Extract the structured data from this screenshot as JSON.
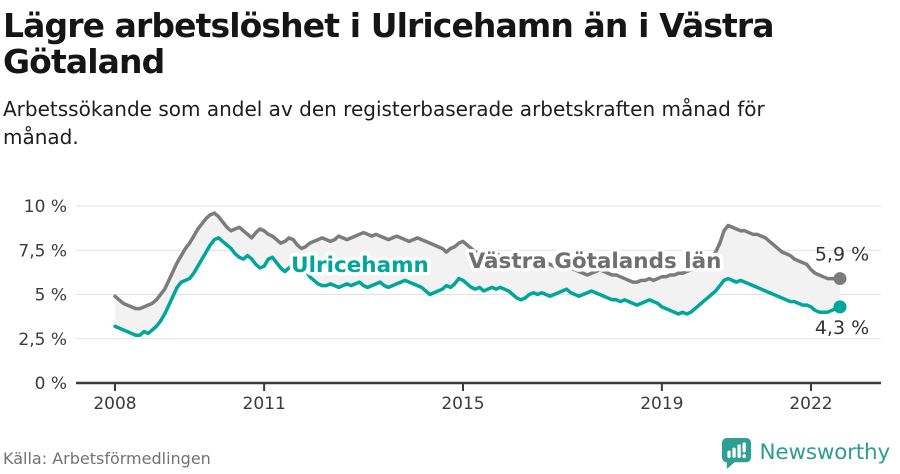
{
  "header": {
    "title": "Lägre arbetslöshet i Ulricehamn än i Västra Götaland",
    "title_lines": [
      "Lägre arbetslöshet i Ulricehamn än i Västra",
      "Götaland"
    ],
    "subtitle": "Arbetssökande som andel av den registerbaserade arbetskraften månad för månad.",
    "subtitle_lines": [
      "Arbetssökande som andel av den registerbaserade arbetskraften månad för",
      "månad."
    ]
  },
  "chart_data": {
    "type": "line",
    "title": "Lägre arbetslöshet i Ulricehamn än i Västra Götaland",
    "x_unit": "month",
    "x_start_year": 2008,
    "x_end_label_period": "mid-2022",
    "ylim": [
      0,
      10
    ],
    "grid": true,
    "y_ticks": [
      {
        "value": 0,
        "label": "0 %"
      },
      {
        "value": 2.5,
        "label": "2,5 %"
      },
      {
        "value": 5,
        "label": "5 %"
      },
      {
        "value": 7.5,
        "label": "7,5 %"
      },
      {
        "value": 10,
        "label": "10 %"
      }
    ],
    "x_ticks": [
      {
        "year": 2008,
        "label": "2008"
      },
      {
        "year": 2011,
        "label": "2011"
      },
      {
        "year": 2015,
        "label": "2015"
      },
      {
        "year": 2019,
        "label": "2019"
      },
      {
        "year": 2022,
        "label": "2022"
      }
    ],
    "area_fill_color": "#f2f2f2",
    "series": [
      {
        "name": "Västra Götalands län",
        "color": "#7c7c7c",
        "label_color": "#6f6f6f",
        "end_label": "5,9 %",
        "end_value": 5.9,
        "values": [
          4.9,
          4.7,
          4.5,
          4.4,
          4.3,
          4.2,
          4.2,
          4.3,
          4.4,
          4.5,
          4.7,
          5.0,
          5.3,
          5.8,
          6.3,
          6.8,
          7.2,
          7.6,
          7.9,
          8.3,
          8.7,
          9.0,
          9.3,
          9.5,
          9.6,
          9.4,
          9.1,
          8.8,
          8.6,
          8.7,
          8.8,
          8.6,
          8.4,
          8.2,
          8.5,
          8.7,
          8.6,
          8.4,
          8.3,
          8.1,
          7.9,
          8.0,
          8.2,
          8.1,
          7.8,
          7.6,
          7.7,
          7.9,
          8.0,
          8.1,
          8.2,
          8.1,
          8.0,
          8.1,
          8.3,
          8.2,
          8.1,
          8.2,
          8.3,
          8.4,
          8.5,
          8.4,
          8.3,
          8.4,
          8.3,
          8.2,
          8.1,
          8.2,
          8.3,
          8.2,
          8.1,
          8.0,
          8.1,
          8.2,
          8.1,
          8.0,
          7.9,
          7.8,
          7.7,
          7.6,
          7.4,
          7.6,
          7.7,
          7.9,
          8.0,
          7.8,
          7.6,
          7.4,
          7.3,
          7.2,
          7.1,
          7.2,
          7.3,
          7.2,
          7.1,
          7.0,
          7.0,
          7.1,
          7.0,
          6.9,
          6.8,
          6.7,
          6.6,
          6.7,
          6.8,
          6.7,
          6.6,
          6.5,
          6.5,
          6.6,
          6.5,
          6.4,
          6.3,
          6.2,
          6.1,
          6.2,
          6.3,
          6.4,
          6.3,
          6.2,
          6.1,
          6.1,
          6.0,
          5.9,
          5.8,
          5.7,
          5.7,
          5.8,
          5.8,
          5.9,
          5.8,
          5.9,
          6.0,
          6.0,
          6.1,
          6.1,
          6.2,
          6.2,
          6.3,
          6.4,
          6.5,
          6.6,
          6.8,
          7.0,
          7.1,
          7.4,
          7.9,
          8.6,
          8.9,
          8.8,
          8.7,
          8.6,
          8.6,
          8.5,
          8.4,
          8.4,
          8.3,
          8.2,
          8.0,
          7.8,
          7.6,
          7.4,
          7.3,
          7.2,
          7.0,
          6.9,
          6.8,
          6.7,
          6.4,
          6.2,
          6.1,
          6.0,
          5.9,
          5.9,
          5.9,
          5.9
        ]
      },
      {
        "name": "Ulricehamn",
        "color": "#00a69a",
        "label_color": "#00a69a",
        "end_label": "4,3 %",
        "end_value": 4.3,
        "values": [
          3.2,
          3.1,
          3.0,
          2.9,
          2.8,
          2.7,
          2.7,
          2.9,
          2.8,
          3.0,
          3.2,
          3.5,
          3.9,
          4.4,
          4.9,
          5.4,
          5.7,
          5.8,
          5.9,
          6.2,
          6.6,
          7.0,
          7.4,
          7.8,
          8.1,
          8.2,
          8.0,
          7.8,
          7.6,
          7.3,
          7.1,
          7.0,
          7.2,
          7.0,
          6.7,
          6.5,
          6.6,
          7.0,
          7.1,
          6.8,
          6.5,
          6.3,
          6.5,
          6.7,
          7.0,
          6.9,
          6.4,
          6.0,
          5.8,
          5.6,
          5.5,
          5.5,
          5.6,
          5.5,
          5.4,
          5.5,
          5.6,
          5.5,
          5.6,
          5.7,
          5.5,
          5.4,
          5.5,
          5.6,
          5.7,
          5.5,
          5.4,
          5.5,
          5.6,
          5.7,
          5.8,
          5.7,
          5.6,
          5.5,
          5.4,
          5.2,
          5.0,
          5.1,
          5.2,
          5.3,
          5.5,
          5.4,
          5.6,
          5.9,
          5.8,
          5.6,
          5.4,
          5.3,
          5.4,
          5.2,
          5.3,
          5.4,
          5.3,
          5.4,
          5.3,
          5.2,
          5.0,
          4.8,
          4.7,
          4.8,
          5.0,
          5.1,
          5.0,
          5.1,
          5.0,
          4.9,
          5.0,
          5.1,
          5.2,
          5.3,
          5.1,
          5.0,
          4.9,
          5.0,
          5.1,
          5.2,
          5.1,
          5.0,
          4.9,
          4.8,
          4.7,
          4.7,
          4.6,
          4.7,
          4.6,
          4.5,
          4.4,
          4.5,
          4.6,
          4.7,
          4.6,
          4.5,
          4.3,
          4.2,
          4.1,
          4.0,
          3.9,
          4.0,
          3.9,
          4.0,
          4.2,
          4.4,
          4.6,
          4.8,
          5.0,
          5.2,
          5.5,
          5.8,
          5.9,
          5.8,
          5.7,
          5.8,
          5.7,
          5.6,
          5.5,
          5.4,
          5.3,
          5.2,
          5.1,
          5.0,
          4.9,
          4.8,
          4.7,
          4.6,
          4.6,
          4.5,
          4.4,
          4.4,
          4.3,
          4.1,
          4.0,
          4.0,
          4.0,
          4.1,
          4.2,
          4.3
        ]
      }
    ]
  },
  "footer": {
    "source": "Källa: Arbetsförmedlingen",
    "brand": "Newsworthy",
    "brand_color": "#2e9c92",
    "logo_icon": "speech-bubble-bar-chart"
  }
}
